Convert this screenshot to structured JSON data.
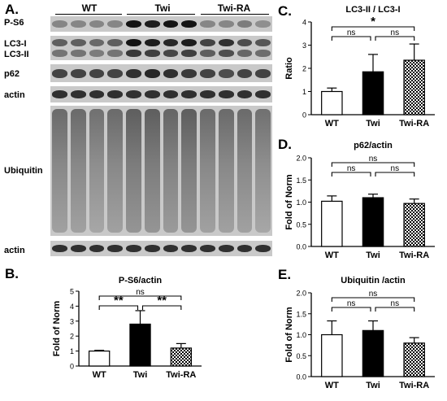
{
  "panels": {
    "A": {
      "letter": "A.",
      "groups": [
        "WT",
        "Twi",
        "Twi-RA"
      ],
      "blots": [
        "P-S6",
        "LC3-I",
        "LC3-II",
        "p62",
        "actin",
        "Ubiquitin",
        "actin"
      ]
    },
    "B": {
      "letter": "B."
    },
    "C": {
      "letter": "C."
    },
    "D": {
      "letter": "D."
    },
    "E": {
      "letter": "E."
    }
  },
  "chart_data": [
    {
      "panel": "B",
      "type": "bar",
      "title": "P-S6/actin",
      "xlabel": "",
      "ylabel": "Fold of Norm",
      "categories": [
        "WT",
        "Twi",
        "Twi-RA"
      ],
      "values": [
        1.0,
        2.8,
        1.2
      ],
      "errors": [
        0.05,
        0.9,
        0.3
      ],
      "ylim": [
        0,
        5
      ],
      "yticks": [
        "0",
        "1",
        "2",
        "3",
        "4",
        "5"
      ],
      "significance": [
        {
          "from": 0,
          "to": 1,
          "label": "**"
        },
        {
          "from": 1,
          "to": 2,
          "label": "**"
        },
        {
          "from": 0,
          "to": 2,
          "label": "ns"
        }
      ],
      "bar_fills": [
        "white",
        "black",
        "checker"
      ]
    },
    {
      "panel": "C",
      "type": "bar",
      "title": "LC3-II / LC3-I",
      "xlabel": "",
      "ylabel": "Ratio",
      "categories": [
        "WT",
        "Twi",
        "Twi-RA"
      ],
      "values": [
        1.0,
        1.85,
        2.35
      ],
      "errors": [
        0.15,
        0.75,
        0.7
      ],
      "ylim": [
        0,
        4
      ],
      "yticks": [
        "0",
        "1",
        "2",
        "3",
        "4"
      ],
      "significance": [
        {
          "from": 0,
          "to": 1,
          "label": "ns"
        },
        {
          "from": 1,
          "to": 2,
          "label": "ns"
        },
        {
          "from": 0,
          "to": 2,
          "label": "*"
        }
      ],
      "bar_fills": [
        "white",
        "black",
        "checker"
      ]
    },
    {
      "panel": "D",
      "type": "bar",
      "title": "p62/actin",
      "xlabel": "",
      "ylabel": "Fold of Norm",
      "categories": [
        "WT",
        "Twi",
        "Twi-RA"
      ],
      "values": [
        1.02,
        1.1,
        0.97
      ],
      "errors": [
        0.12,
        0.08,
        0.1
      ],
      "ylim": [
        0,
        2
      ],
      "yticks": [
        "0.0",
        "0.5",
        "1.0",
        "1.5",
        "2.0"
      ],
      "significance": [
        {
          "from": 0,
          "to": 1,
          "label": "ns"
        },
        {
          "from": 1,
          "to": 2,
          "label": "ns"
        },
        {
          "from": 0,
          "to": 2,
          "label": "ns"
        }
      ],
      "bar_fills": [
        "white",
        "black",
        "checker"
      ]
    },
    {
      "panel": "E",
      "type": "bar",
      "title": "Ubiquitin /actin",
      "xlabel": "",
      "ylabel": "Fold of Norm",
      "categories": [
        "WT",
        "Twi",
        "Twi-RA"
      ],
      "values": [
        1.0,
        1.1,
        0.8
      ],
      "errors": [
        0.33,
        0.23,
        0.13
      ],
      "ylim": [
        0,
        2
      ],
      "yticks": [
        "0.0",
        "0.5",
        "1.0",
        "1.5",
        "2.0"
      ],
      "significance": [
        {
          "from": 0,
          "to": 1,
          "label": "ns"
        },
        {
          "from": 1,
          "to": 2,
          "label": "ns"
        },
        {
          "from": 0,
          "to": 2,
          "label": "ns"
        }
      ],
      "bar_fills": [
        "white",
        "black",
        "checker"
      ]
    }
  ]
}
